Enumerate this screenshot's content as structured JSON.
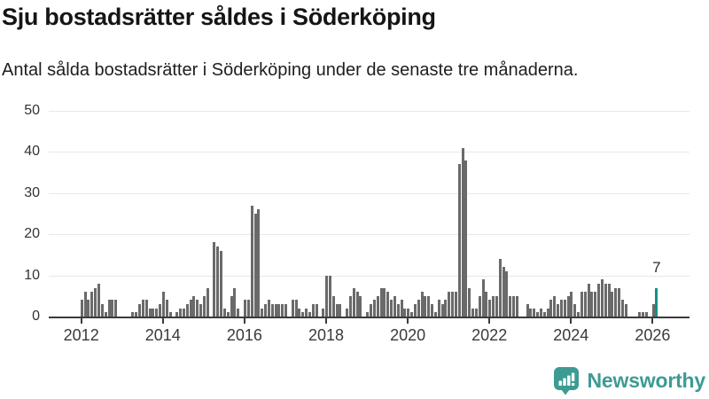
{
  "title": "Sju bostadsrätter såldes i Söderköping",
  "subtitle": "Antal sålda bostadsrätter i Söderköping under de senaste tre månaderna.",
  "branding": {
    "name": "Newsworthy"
  },
  "colors": {
    "bar": "#6a6a6a",
    "highlight": "#0e9488",
    "grid": "#e8e8e8",
    "axis": "#3b3b3b",
    "brand": "#3d9b94",
    "title": "#151515",
    "label": "#333333"
  },
  "chart_data": {
    "type": "bar",
    "title": "Sju bostadsrätter såldes i Söderköping",
    "subtitle": "Antal sålda bostadsrätter i Söderköping under de senaste tre månaderna.",
    "unit": "sålda bostadsrätter per månad",
    "x_start": "2012-01",
    "x_end": "2026-02",
    "ylim": [
      0,
      50
    ],
    "y_ticks": [
      0,
      10,
      20,
      30,
      40,
      50
    ],
    "x_tick_labels": [
      "2012",
      "2014",
      "2016",
      "2018",
      "2020",
      "2022",
      "2024",
      "2026"
    ],
    "grid": true,
    "legend": "none",
    "highlight": {
      "index": 169,
      "value": 7,
      "label": "7"
    },
    "values": [
      4,
      6,
      4,
      6,
      7,
      8,
      3,
      1,
      4,
      4,
      4,
      0,
      0,
      0,
      0,
      1,
      1,
      3,
      4,
      4,
      2,
      2,
      2,
      3,
      6,
      4,
      1,
      0,
      1,
      2,
      2,
      3,
      4,
      5,
      4,
      3,
      5,
      7,
      0,
      18,
      17,
      16,
      2,
      1,
      5,
      7,
      2,
      0,
      4,
      4,
      27,
      25,
      26,
      2,
      3,
      4,
      3,
      3,
      3,
      3,
      3,
      0,
      4,
      4,
      2,
      1,
      2,
      1,
      3,
      3,
      0,
      2,
      10,
      10,
      5,
      3,
      3,
      0,
      2,
      5,
      7,
      6,
      5,
      0,
      1,
      3,
      4,
      5,
      7,
      7,
      6,
      4,
      5,
      3,
      4,
      2,
      2,
      1,
      3,
      4,
      6,
      5,
      5,
      3,
      1,
      4,
      3,
      4,
      6,
      6,
      6,
      37,
      41,
      38,
      7,
      2,
      2,
      5,
      9,
      6,
      4,
      5,
      5,
      14,
      12,
      11,
      5,
      5,
      5,
      0,
      0,
      3,
      2,
      2,
      1,
      2,
      1,
      2,
      4,
      5,
      3,
      4,
      4,
      5,
      6,
      3,
      1,
      6,
      6,
      8,
      6,
      6,
      8,
      9,
      8,
      8,
      6,
      7,
      7,
      4,
      3,
      0,
      0,
      0,
      1,
      1,
      1,
      0,
      3,
      7
    ]
  }
}
